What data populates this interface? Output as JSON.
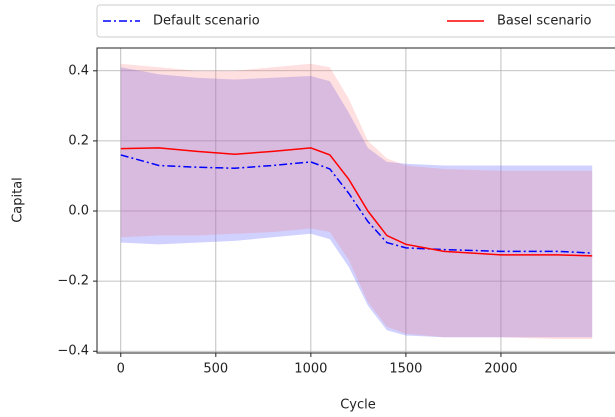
{
  "chart_data": {
    "type": "line",
    "x_label": "Cycle",
    "y_label": "Capital",
    "x": [
      0,
      200,
      400,
      600,
      800,
      1000,
      1100,
      1200,
      1300,
      1400,
      1500,
      1700,
      2000,
      2300,
      2480
    ],
    "series": [
      {
        "name": "Default scenario",
        "color": "#0000ff",
        "dash": "dashdot",
        "band_color": "#6666ff",
        "values": [
          0.16,
          0.13,
          0.125,
          0.122,
          0.13,
          0.14,
          0.12,
          0.05,
          -0.03,
          -0.09,
          -0.105,
          -0.11,
          -0.115,
          -0.115,
          -0.12
        ],
        "band_upper": [
          0.41,
          0.39,
          0.38,
          0.375,
          0.38,
          0.385,
          0.37,
          0.28,
          0.18,
          0.14,
          0.135,
          0.13,
          0.13,
          0.13,
          0.13
        ],
        "band_lower": [
          -0.09,
          -0.095,
          -0.09,
          -0.085,
          -0.075,
          -0.065,
          -0.08,
          -0.16,
          -0.27,
          -0.34,
          -0.355,
          -0.36,
          -0.36,
          -0.36,
          -0.36
        ]
      },
      {
        "name": "Basel scenario",
        "color": "#ff0000",
        "dash": "solid",
        "band_color": "#ff6666",
        "values": [
          0.178,
          0.18,
          0.17,
          0.162,
          0.17,
          0.18,
          0.16,
          0.09,
          0.0,
          -0.07,
          -0.095,
          -0.115,
          -0.125,
          -0.125,
          -0.128
        ],
        "band_upper": [
          0.42,
          0.41,
          0.4,
          0.4,
          0.41,
          0.42,
          0.41,
          0.32,
          0.2,
          0.15,
          0.13,
          0.12,
          0.115,
          0.115,
          0.115
        ],
        "band_lower": [
          -0.075,
          -0.07,
          -0.07,
          -0.065,
          -0.06,
          -0.05,
          -0.06,
          -0.14,
          -0.26,
          -0.33,
          -0.35,
          -0.36,
          -0.36,
          -0.365,
          -0.365
        ]
      }
    ],
    "xlim": [
      -125,
      2600
    ],
    "ylim": [
      -0.405,
      0.465
    ],
    "xticks": [
      0,
      500,
      1000,
      1500,
      2000
    ],
    "yticks": [
      {
        "value": -0.4,
        "label": "−0.4"
      },
      {
        "value": -0.2,
        "label": "−0.2"
      },
      {
        "value": 0,
        "label": "0.0"
      },
      {
        "value": 0.2,
        "label": "0.2"
      },
      {
        "value": 0.4,
        "label": "0.4"
      }
    ],
    "grid": true,
    "legend": "top"
  }
}
